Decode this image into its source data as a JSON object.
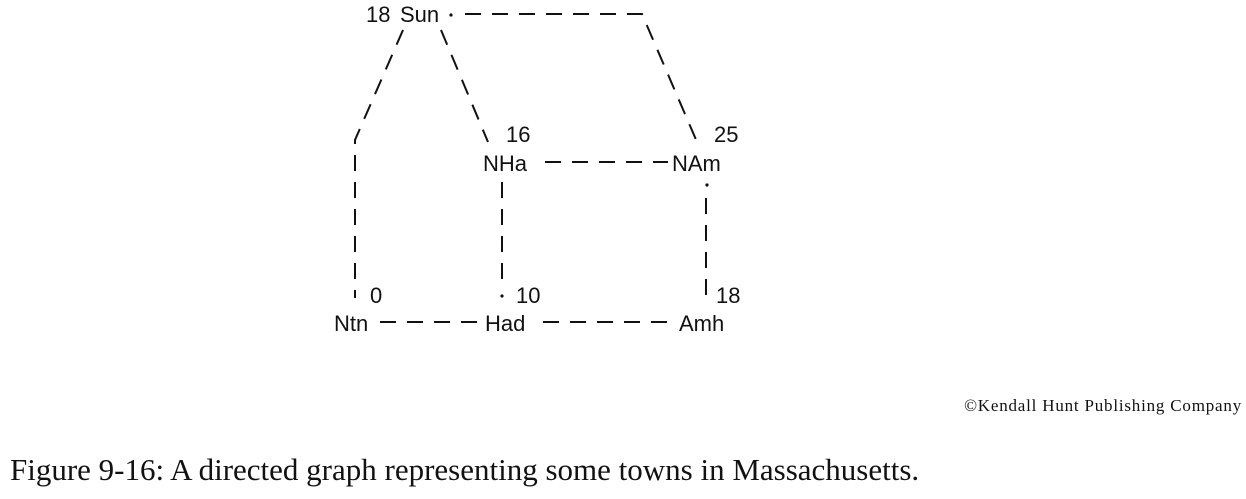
{
  "graph": {
    "nodes": [
      {
        "id": "sun",
        "label": "Sun",
        "weight": "18"
      },
      {
        "id": "nha",
        "label": "NHa",
        "weight": "16"
      },
      {
        "id": "nam",
        "label": "NAm",
        "weight": "25"
      },
      {
        "id": "ntn",
        "label": "Ntn",
        "weight": "0"
      },
      {
        "id": "had",
        "label": "Had",
        "weight": "10"
      },
      {
        "id": "amh",
        "label": "Amh",
        "weight": "18"
      }
    ],
    "edges": [
      {
        "from": "Sun",
        "to": "NAm"
      },
      {
        "from": "Sun",
        "to": "NHa"
      },
      {
        "from": "Sun",
        "to": "Ntn"
      },
      {
        "from": "NHa",
        "to": "NAm"
      },
      {
        "from": "NHa",
        "to": "Had"
      },
      {
        "from": "NAm",
        "to": "Amh"
      },
      {
        "from": "Ntn",
        "to": "Had"
      },
      {
        "from": "Had",
        "to": "Amh"
      }
    ]
  },
  "copyright": "©Kendall Hunt Publishing Company",
  "caption": "Figure 9-16: A directed graph representing some towns in Massachusetts."
}
